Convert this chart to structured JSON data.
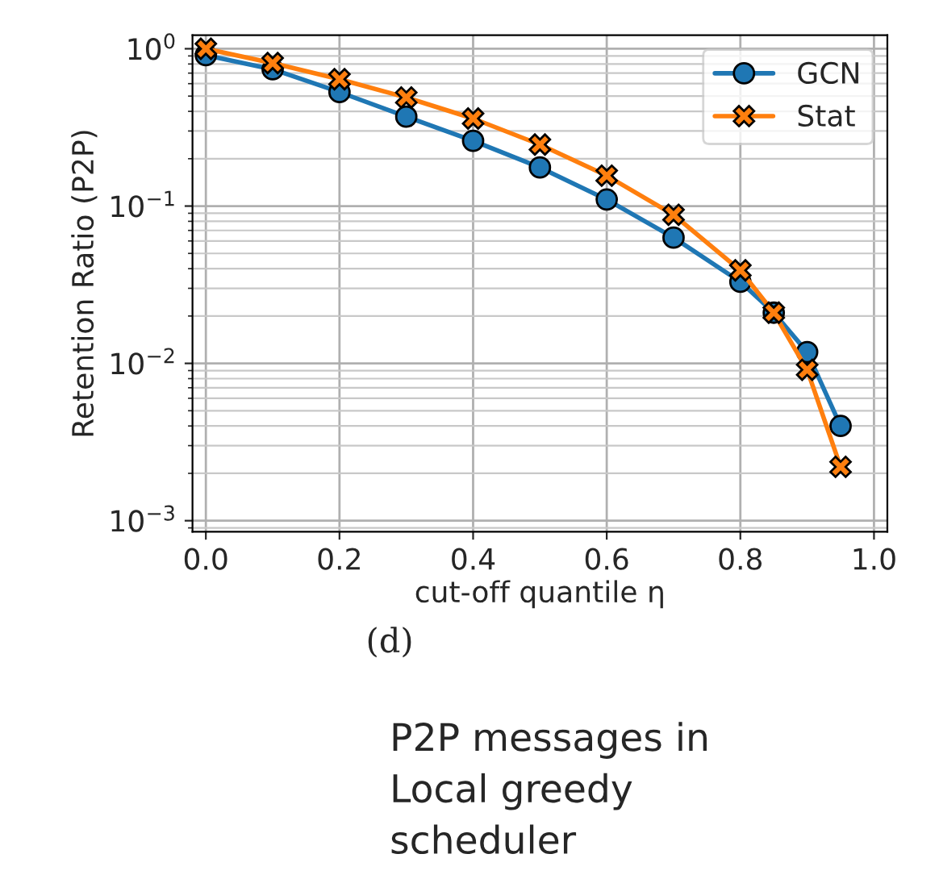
{
  "chart_data": {
    "type": "line",
    "xlabel": "cut-off quantile η",
    "ylabel": "Retention Ratio (P2P)",
    "x": [
      0.0,
      0.1,
      0.2,
      0.3,
      0.4,
      0.5,
      0.6,
      0.7,
      0.8,
      0.85,
      0.9,
      0.95
    ],
    "series": [
      {
        "name": "GCN",
        "color": "#1f77b4",
        "marker": "circle",
        "values": [
          0.91,
          0.74,
          0.53,
          0.37,
          0.26,
          0.176,
          0.11,
          0.063,
          0.033,
          0.021,
          0.0118,
          0.004
        ]
      },
      {
        "name": "Stat",
        "color": "#ff7f0e",
        "marker": "cross",
        "values": [
          1.0,
          0.81,
          0.64,
          0.49,
          0.36,
          0.246,
          0.156,
          0.088,
          0.039,
          0.021,
          0.0091,
          0.0022
        ]
      }
    ],
    "log": "y",
    "xlim": [
      -0.02,
      1.02
    ],
    "xticks": [
      {
        "value": 0,
        "label": "0.0"
      },
      0.2,
      0.4,
      0.6,
      0.8,
      {
        "value": 1,
        "label": "1.0"
      }
    ],
    "ylim": [
      0.00085,
      1.22
    ],
    "yticks": [
      {
        "value": 0.001,
        "label": "10$^{−3}$"
      },
      {
        "value": 0.01,
        "label": "10$^{−2}$"
      },
      {
        "value": 0.1,
        "label": "10$^{−1}$"
      },
      {
        "value": 1,
        "label": "10$^{0}$"
      }
    ],
    "grid": true,
    "legend": "top right",
    "line_style": "solid",
    "annotations": [
      "(d)",
      "P2P messages in\nLocal greedy\nscheduler"
    ]
  }
}
